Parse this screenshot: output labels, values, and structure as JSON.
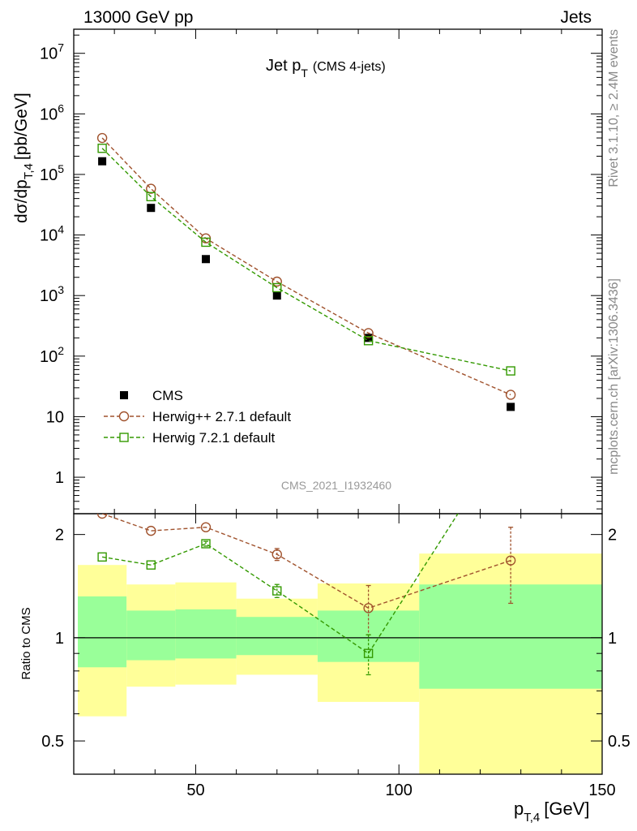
{
  "header": {
    "left": "13000 GeV pp",
    "right": "Jets"
  },
  "side_labels": {
    "rivet": "Rivet 3.1.10, ≥ 2.4M events",
    "mcplots": "mcplots.cern.ch [arXiv:1306.3436]"
  },
  "chart_data": {
    "type": "scatter",
    "title_main": "Jet p",
    "title_sub": "T",
    "title_note": "(CMS 4-jets)",
    "analysis_tag": "CMS_2021_I1932460",
    "xlabel_main": "p",
    "xlabel_sub": "T,4",
    "xlabel_unit": "[GeV]",
    "ylabel_main": "dσ/dp",
    "ylabel_sub": "T,4",
    "ylabel_unit": "[pb/GeV]",
    "ratio_ylabel": "Ratio to CMS",
    "xlim": [
      20,
      150
    ],
    "ylim": [
      0.25,
      25000000
    ],
    "ylog": true,
    "ratio_ylim": [
      0.4,
      2.3
    ],
    "ratio_ylog": true,
    "x_ticks": [
      {
        "value": 50,
        "label": "50"
      },
      {
        "value": 100,
        "label": "100"
      },
      {
        "value": 150,
        "label": "150"
      }
    ],
    "y_ticks": [
      {
        "value": 1,
        "label": "1",
        "sup": ""
      },
      {
        "value": 10,
        "label": "10",
        "sup": ""
      },
      {
        "value": 100,
        "label": "10",
        "sup": "2"
      },
      {
        "value": 1000,
        "label": "10",
        "sup": "3"
      },
      {
        "value": 10000,
        "label": "10",
        "sup": "4"
      },
      {
        "value": 100000,
        "label": "10",
        "sup": "5"
      },
      {
        "value": 1000000,
        "label": "10",
        "sup": "6"
      },
      {
        "value": 10000000,
        "label": "10",
        "sup": "7"
      }
    ],
    "ratio_ticks": [
      {
        "value": 0.5,
        "label": "0.5"
      },
      {
        "value": 1,
        "label": "1"
      },
      {
        "value": 2,
        "label": "2"
      }
    ],
    "legend_position": "bottom-left",
    "series": [
      {
        "name": "CMS",
        "color": "#000000",
        "marker": "filled-square",
        "line": "none",
        "x": [
          27,
          39,
          52.5,
          70,
          92.5,
          127.5
        ],
        "y": [
          165000,
          28000,
          4000,
          1000,
          200,
          14.5
        ]
      },
      {
        "name": "Herwig++ 2.7.1 default",
        "color": "#a0522d",
        "marker": "open-circle",
        "line": "dashed",
        "x": [
          27,
          39,
          52.5,
          70,
          92.5,
          127.5
        ],
        "y": [
          400000,
          58000,
          8800,
          1700,
          240,
          23
        ],
        "ratio": [
          2.3,
          2.05,
          2.1,
          1.75,
          1.22,
          1.68
        ],
        "ratio_err": [
          0,
          0,
          0,
          0.07,
          0.2,
          0.42
        ]
      },
      {
        "name": "Herwig 7.2.1 default",
        "color": "#339900",
        "marker": "open-square",
        "line": "dashed",
        "x": [
          27,
          39,
          52.5,
          70,
          92.5,
          127.5
        ],
        "y": [
          270000,
          43000,
          7600,
          1350,
          180,
          57
        ],
        "ratio": [
          1.72,
          1.63,
          1.88,
          1.37,
          0.9,
          4
        ],
        "ratio_err": [
          0,
          0,
          0.03,
          0.06,
          0.12,
          0.3
        ]
      }
    ],
    "uncertainty_bands": [
      {
        "x_lo": 21,
        "x_hi": 33,
        "inner": [
          0.82,
          1.32
        ],
        "outer": [
          0.59,
          1.63
        ]
      },
      {
        "x_lo": 33,
        "x_hi": 45,
        "inner": [
          0.86,
          1.2
        ],
        "outer": [
          0.72,
          1.43
        ]
      },
      {
        "x_lo": 45,
        "x_hi": 60,
        "inner": [
          0.87,
          1.21
        ],
        "outer": [
          0.73,
          1.45
        ]
      },
      {
        "x_lo": 60,
        "x_hi": 80,
        "inner": [
          0.89,
          1.15
        ],
        "outer": [
          0.78,
          1.3
        ]
      },
      {
        "x_lo": 80,
        "x_hi": 105,
        "inner": [
          0.85,
          1.2
        ],
        "outer": [
          0.65,
          1.44
        ]
      },
      {
        "x_lo": 105,
        "x_hi": 150,
        "inner": [
          0.71,
          1.43
        ],
        "outer": [
          0.33,
          1.76
        ]
      }
    ],
    "band_colors": {
      "inner": "#99ff99",
      "outer": "#ffff99"
    }
  }
}
